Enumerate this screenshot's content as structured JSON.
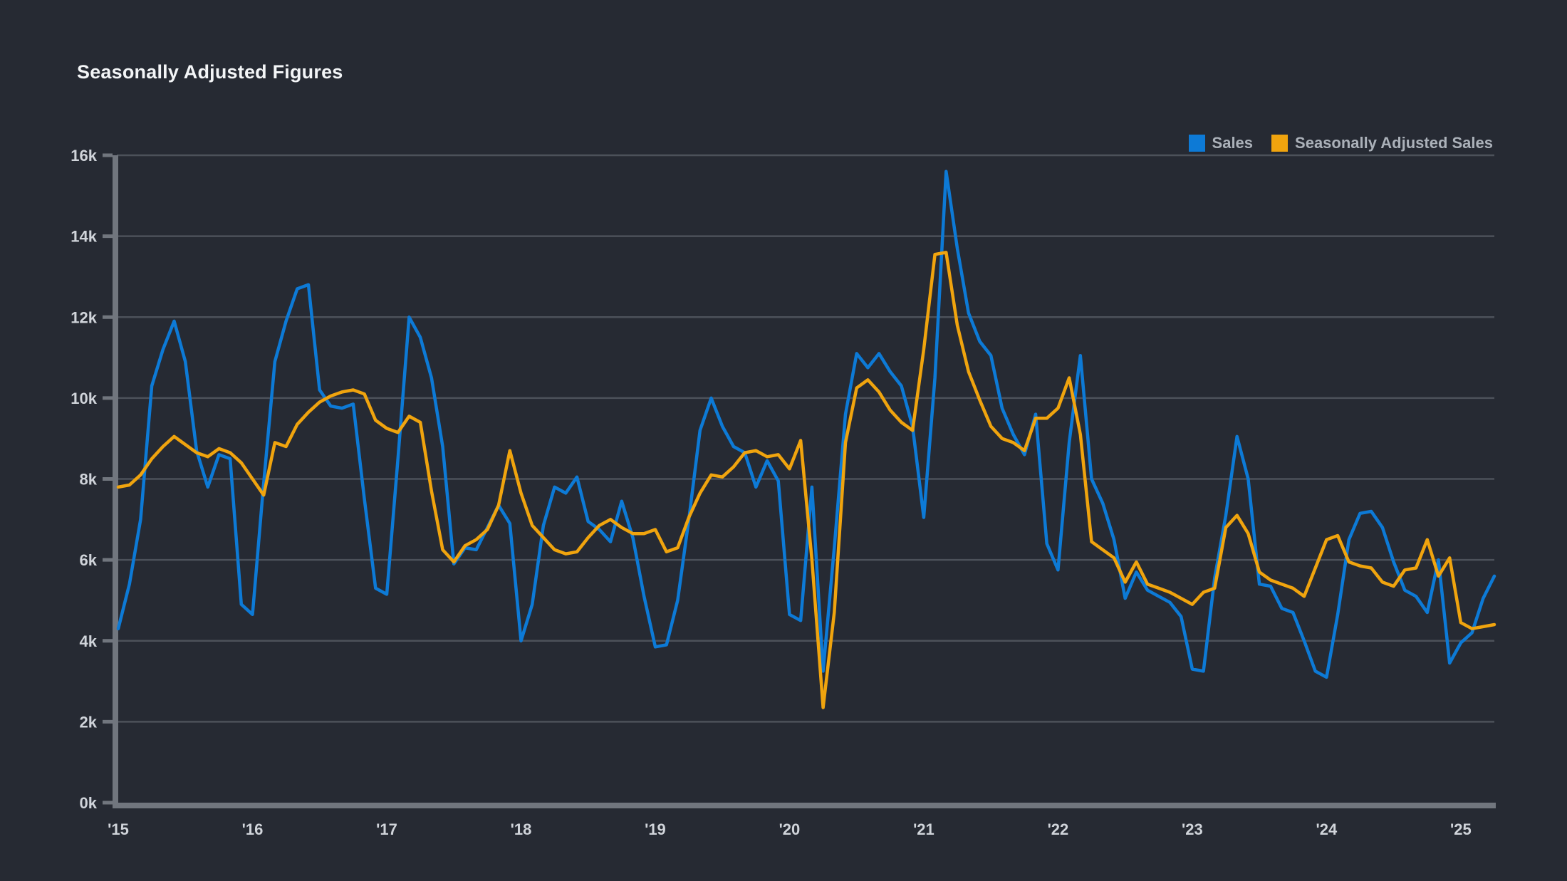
{
  "title": "Seasonally Adjusted Figures",
  "legend": [
    {
      "label": "Sales",
      "color": "#0d7ad6"
    },
    {
      "label": "Seasonally Adjusted Sales",
      "color": "#f0a40e"
    }
  ],
  "colors": {
    "background": "#262a33",
    "gridline": "#4c515a",
    "axis": "#71767e",
    "title_text": "#f3f5f7",
    "tick_text": "#d0d4da",
    "legend_text": "#abb1b9",
    "sales_line": "#0d7ad6",
    "adjusted_line": "#f0a40e"
  },
  "chart_data": {
    "type": "line",
    "title": "Seasonally Adjusted Figures",
    "xlabel": "",
    "ylabel": "",
    "x_unit": "month",
    "x_range": [
      "2015-01",
      "2025-04"
    ],
    "x_tick_labels": [
      "'15",
      "'16",
      "'17",
      "'18",
      "'19",
      "'20",
      "'21",
      "'22",
      "'23",
      "'24",
      "'25"
    ],
    "y_tick_labels": [
      "0k",
      "2k",
      "4k",
      "6k",
      "8k",
      "10k",
      "12k",
      "14k",
      "16k"
    ],
    "ylim": [
      0,
      16000
    ],
    "grid": true,
    "legend_position": "top-right",
    "series": [
      {
        "name": "Sales",
        "color": "#0d7ad6",
        "values": [
          4300,
          5400,
          7000,
          10300,
          11200,
          11900,
          10900,
          8700,
          7800,
          8600,
          8500,
          4900,
          4650,
          7900,
          10900,
          11900,
          12700,
          12800,
          10200,
          9800,
          9750,
          9850,
          7500,
          5300,
          5150,
          8500,
          12000,
          11500,
          10500,
          8800,
          5900,
          6300,
          6250,
          6800,
          7350,
          6900,
          4000,
          4900,
          6850,
          7800,
          7650,
          8050,
          6950,
          6750,
          6450,
          7450,
          6550,
          5100,
          3850,
          3900,
          5000,
          7000,
          9200,
          10000,
          9300,
          8800,
          8650,
          7800,
          8450,
          7950,
          4650,
          4500,
          7800,
          3250,
          6300,
          9600,
          11100,
          10750,
          11100,
          10650,
          10300,
          9300,
          7050,
          10500,
          15600,
          13700,
          12100,
          11400,
          11050,
          9750,
          9100,
          8600,
          9600,
          6400,
          5750,
          8900,
          11050,
          8000,
          7400,
          6500,
          5050,
          5700,
          5250,
          5100,
          4950,
          4600,
          3300,
          3250,
          5550,
          7100,
          9050,
          8000,
          5400,
          5350,
          4800,
          4700,
          4000,
          3250,
          3100,
          4650,
          6500,
          7150,
          7200,
          6800,
          5950,
          5250,
          5100,
          4700,
          6000,
          3450,
          3950,
          4200,
          5050,
          5600
        ]
      },
      {
        "name": "Seasonally Adjusted Sales",
        "color": "#f0a40e",
        "values": [
          7800,
          7850,
          8100,
          8500,
          8800,
          9050,
          8850,
          8650,
          8550,
          8750,
          8650,
          8400,
          8000,
          7600,
          8900,
          8800,
          9350,
          9650,
          9900,
          10050,
          10150,
          10200,
          10100,
          9450,
          9250,
          9150,
          9550,
          9400,
          7700,
          6250,
          5950,
          6350,
          6500,
          6750,
          7350,
          8700,
          7650,
          6850,
          6550,
          6250,
          6150,
          6200,
          6550,
          6850,
          7000,
          6800,
          6650,
          6650,
          6750,
          6200,
          6300,
          7050,
          7650,
          8100,
          8050,
          8300,
          8650,
          8700,
          8550,
          8600,
          8250,
          8950,
          6000,
          2350,
          4700,
          8900,
          10250,
          10450,
          10150,
          9700,
          9400,
          9200,
          11200,
          13550,
          13600,
          11800,
          10650,
          9950,
          9300,
          9000,
          8900,
          8700,
          9500,
          9500,
          9750,
          10500,
          9100,
          6450,
          6250,
          6050,
          5450,
          5950,
          5400,
          5300,
          5200,
          5050,
          4900,
          5200,
          5300,
          6800,
          7100,
          6650,
          5700,
          5500,
          5400,
          5300,
          5100,
          5800,
          6500,
          6600,
          5950,
          5850,
          5800,
          5450,
          5350,
          5750,
          5800,
          6500,
          5600,
          6050,
          4450,
          4300,
          4350,
          4400
        ]
      }
    ]
  }
}
